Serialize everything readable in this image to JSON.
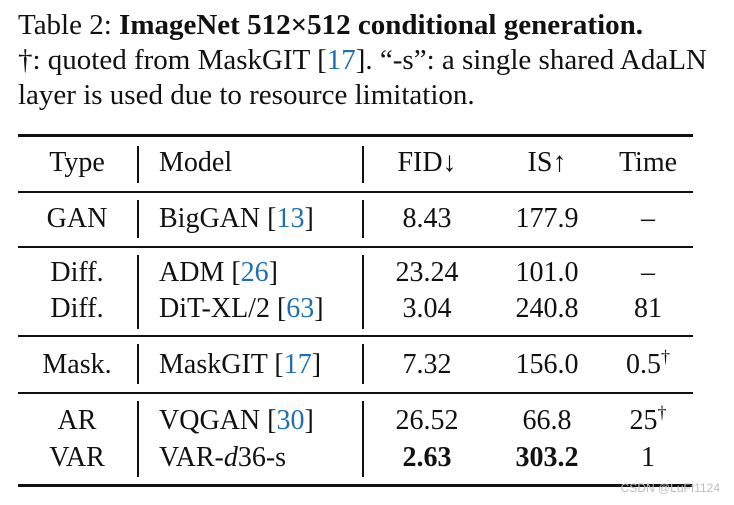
{
  "caption": {
    "label": "Table 2:",
    "title": "ImageNet 512×512 conditional generation.",
    "note_part1": "†: quoted from MaskGIT [",
    "note_cite": "17",
    "note_part2": "]. “-s”: a single shared AdaLN layer is used due to resource limitation."
  },
  "table": {
    "headers": {
      "type": "Type",
      "model": "Model",
      "fid": "FID↓",
      "is": "IS↑",
      "time": "Time"
    },
    "rows": [
      {
        "type": "GAN",
        "model": "BigGAN [",
        "cite": "13",
        "model_end": "]",
        "fid": "8.43",
        "is": "177.9",
        "time": "–"
      },
      {
        "type": "Diff.",
        "model": "ADM [",
        "cite": "26",
        "model_end": "]",
        "fid": "23.24",
        "is": "101.0",
        "time": "–"
      },
      {
        "type": "Diff.",
        "model": "DiT-XL/2 [",
        "cite": "63",
        "model_end": "]",
        "fid": "3.04",
        "is": "240.8",
        "time": "81"
      },
      {
        "type": "Mask.",
        "model": "MaskGIT [",
        "cite": "17",
        "model_end": "]",
        "fid": "7.32",
        "is": "156.0",
        "time": "0.5",
        "time_sup": "†"
      },
      {
        "type": "AR",
        "model": "VQGAN [",
        "cite": "30",
        "model_end": "]",
        "fid": "26.52",
        "is": "66.8",
        "time": "25",
        "time_sup": "†"
      },
      {
        "type": "VAR",
        "model": "VAR-",
        "model_italic": "d",
        "model_end": "36-s",
        "fid": "2.63",
        "is": "303.2",
        "time": "1"
      }
    ]
  },
  "watermark": "CSDN @LuFf1124"
}
